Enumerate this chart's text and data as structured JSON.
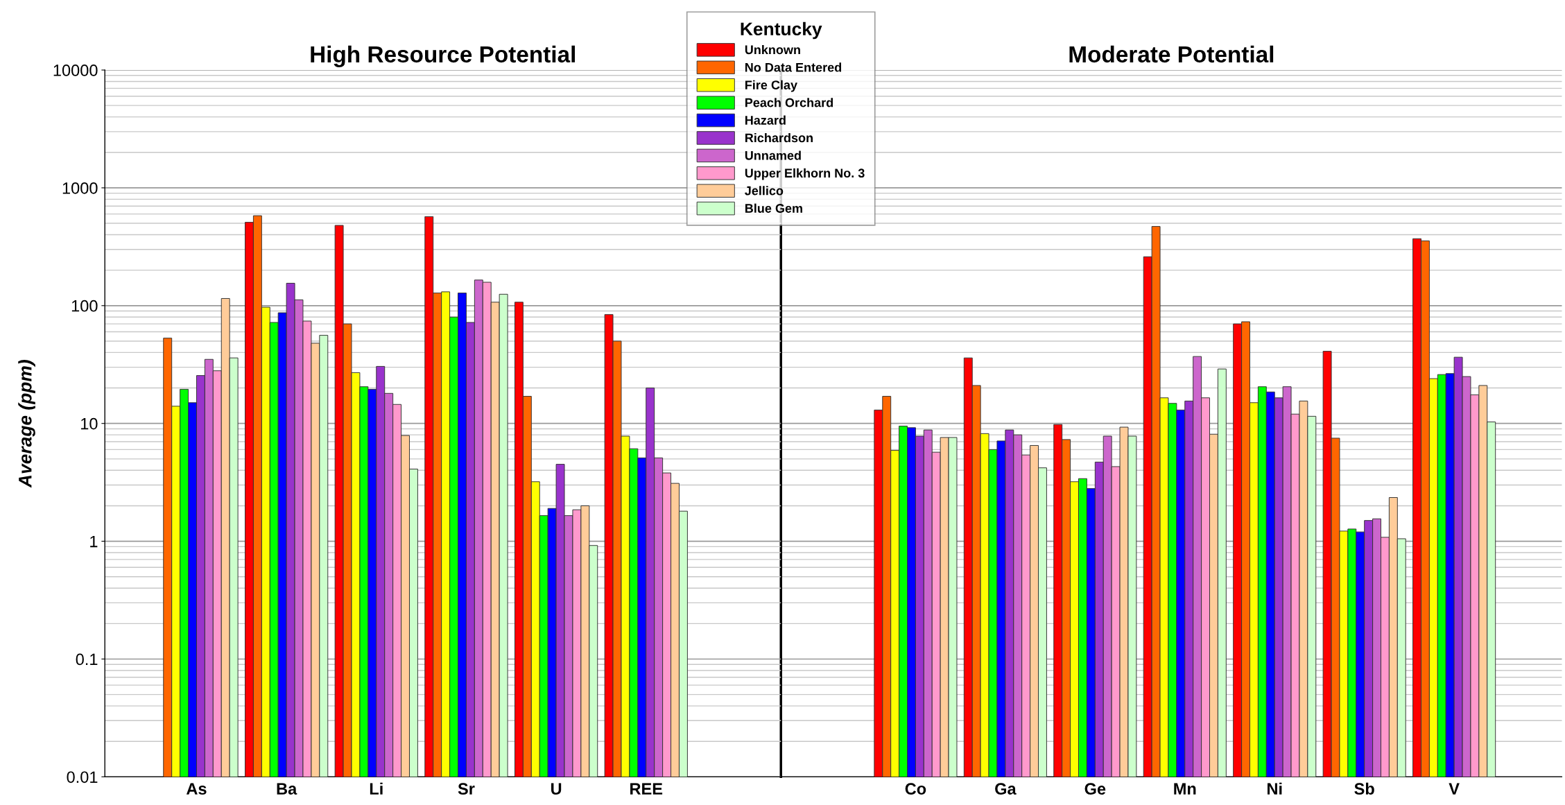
{
  "chart_data": [
    {
      "type": "bar",
      "title": "High Resource Potential",
      "ylabel": "Average (ppm)",
      "log": "y",
      "ylim": [
        0.01,
        10000
      ],
      "yticks": [
        0.01,
        0.1,
        1,
        10,
        100,
        1000,
        10000
      ],
      "grid": "y",
      "legend": "top",
      "legend_title": "Kentucky",
      "categories": [
        "As",
        "Ba",
        "Li",
        "Sr",
        "U",
        "REE"
      ],
      "series": [
        {
          "name": "Unknown",
          "color": "#ff0000",
          "values": [
            null,
            510,
            480,
            570,
            107,
            84
          ]
        },
        {
          "name": "No Data Entered",
          "color": "#ff6600",
          "values": [
            53,
            580,
            70,
            128,
            17,
            50
          ]
        },
        {
          "name": "Fire Clay",
          "color": "#ffff00",
          "values": [
            14,
            97,
            27,
            131,
            3.2,
            7.8
          ]
        },
        {
          "name": "Peach Orchard",
          "color": "#00ff00",
          "values": [
            19.5,
            72,
            20.5,
            80,
            1.65,
            6.1
          ]
        },
        {
          "name": "Hazard",
          "color": "#0000ff",
          "values": [
            15,
            87,
            19.5,
            128,
            1.9,
            5.1
          ]
        },
        {
          "name": "Richardson",
          "color": "#9933cc",
          "values": [
            25.5,
            155,
            30.5,
            72,
            4.5,
            20
          ]
        },
        {
          "name": "Unnamed",
          "color": "#cc66cc",
          "values": [
            35,
            112,
            18,
            165,
            1.65,
            5.1
          ]
        },
        {
          "name": "Upper Elkhorn No. 3",
          "color": "#ff99cc",
          "values": [
            28,
            74,
            14.5,
            158,
            1.85,
            3.8
          ]
        },
        {
          "name": "Jellico",
          "color": "#ffcc99",
          "values": [
            115,
            48,
            7.9,
            107,
            2.0,
            3.1
          ]
        },
        {
          "name": "Blue Gem",
          "color": "#ccffcc",
          "values": [
            36,
            56,
            4.1,
            125,
            0.92,
            1.8
          ]
        }
      ]
    },
    {
      "type": "bar",
      "title": "Moderate Potential",
      "log": "y",
      "ylim": [
        0.01,
        10000
      ],
      "yticks": [
        0.01,
        0.1,
        1,
        10,
        100,
        1000,
        10000
      ],
      "grid": "y",
      "tick_labels": "x",
      "categories": [
        "Co",
        "Ga",
        "Ge",
        "Mn",
        "Ni",
        "Sb",
        "V"
      ],
      "series": [
        {
          "color": "#ff0000",
          "values": [
            13,
            36,
            9.8,
            260,
            70,
            41,
            370
          ]
        },
        {
          "color": "#ff6600",
          "values": [
            17,
            21,
            7.3,
            470,
            73,
            7.5,
            355
          ]
        },
        {
          "color": "#ffff00",
          "values": [
            5.9,
            8.2,
            3.2,
            16.5,
            15,
            1.22,
            24
          ]
        },
        {
          "color": "#00ff00",
          "values": [
            9.5,
            6.0,
            3.4,
            14.8,
            20.5,
            1.27,
            26
          ]
        },
        {
          "color": "#0000ff",
          "values": [
            9.2,
            7.1,
            2.8,
            13,
            18.5,
            1.2,
            26.5
          ]
        },
        {
          "color": "#9933cc",
          "values": [
            7.8,
            8.8,
            4.7,
            15.5,
            16.5,
            1.5,
            36.5
          ]
        },
        {
          "color": "#cc66cc",
          "values": [
            8.8,
            8.0,
            7.8,
            37,
            20.5,
            1.55,
            25
          ]
        },
        {
          "color": "#ff99cc",
          "values": [
            5.7,
            5.4,
            4.3,
            16.5,
            12,
            1.08,
            17.5
          ]
        },
        {
          "color": "#ffcc99",
          "values": [
            7.6,
            6.5,
            9.3,
            8.1,
            15.5,
            2.35,
            21
          ]
        },
        {
          "color": "#ccffcc",
          "values": [
            7.6,
            4.2,
            7.8,
            29,
            11.5,
            1.05,
            10.3
          ]
        }
      ]
    }
  ]
}
